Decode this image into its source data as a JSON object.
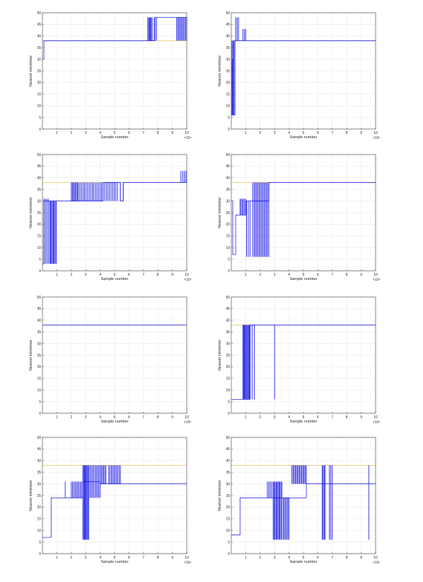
{
  "chart_data": [
    {
      "type": "line",
      "xlabel": "Sample number",
      "ylabel": "Nearest minimiser",
      "x_multiplier": "×10⁴",
      "xlim": [
        0,
        10
      ],
      "ylim": [
        0,
        50
      ],
      "xticks": [
        1,
        2,
        3,
        4,
        5,
        6,
        7,
        8,
        9,
        10
      ],
      "yticks": [
        0,
        5,
        10,
        15,
        20,
        25,
        30,
        35,
        40,
        45,
        50
      ],
      "grid": true,
      "reference_line": 38,
      "series": [
        {
          "start": 30,
          "segments": [
            {
              "x": 0.1,
              "y": 38
            },
            {
              "x": 7.3,
              "y": 38,
              "flicker": [
                7.3,
                7.6,
                38,
                48,
                6
              ]
            },
            {
              "x": 7.6,
              "y": 38
            },
            {
              "x": 7.8,
              "y": 48,
              "flicker": [
                7.75,
                7.9,
                38,
                48,
                2
              ]
            },
            {
              "x": 9.3,
              "y": 48,
              "flicker": [
                9.3,
                10.0,
                38,
                48,
                10
              ]
            }
          ]
        }
      ]
    },
    {
      "type": "line",
      "xlabel": "Sample number",
      "ylabel": "Nearest minimiser",
      "x_multiplier": "×10⁴",
      "xlim": [
        0,
        10
      ],
      "ylim": [
        0,
        50
      ],
      "xticks": [
        1,
        2,
        3,
        4,
        5,
        6,
        7,
        8,
        9,
        10
      ],
      "yticks": [
        0,
        5,
        10,
        15,
        20,
        25,
        30,
        35,
        40,
        45,
        50
      ],
      "grid": true,
      "reference_line": 38,
      "series": [
        {
          "start": 6,
          "segments": [
            {
              "x": 0.05,
              "y": 30
            },
            {
              "x": 0.1,
              "y": 6,
              "flicker": [
                0.05,
                0.25,
                6,
                38,
                4
              ]
            },
            {
              "x": 0.25,
              "y": 38,
              "flicker": [
                0.3,
                0.5,
                38,
                48,
                3
              ]
            },
            {
              "x": 0.5,
              "y": 38
            },
            {
              "x": 0.8,
              "y": 38,
              "flicker": [
                0.8,
                1.0,
                38,
                43,
                3
              ]
            },
            {
              "x": 1.0,
              "y": 38
            }
          ]
        }
      ]
    },
    {
      "type": "line",
      "xlabel": "Sample number",
      "ylabel": "Nearest minimiser",
      "x_multiplier": "×10⁴",
      "xlim": [
        0,
        10
      ],
      "ylim": [
        0,
        50
      ],
      "xticks": [
        1,
        2,
        3,
        4,
        5,
        6,
        7,
        8,
        9,
        10
      ],
      "yticks": [
        0,
        5,
        10,
        15,
        20,
        25,
        30,
        35,
        40,
        45,
        50
      ],
      "grid": true,
      "reference_line": 38,
      "series": [
        {
          "start": 3,
          "segments": [
            {
              "x": 0.1,
              "y": 30,
              "flicker": [
                0.1,
                0.4,
                3,
                31,
                4
              ]
            },
            {
              "x": 0.4,
              "y": 30,
              "flicker": [
                0.5,
                0.95,
                3,
                30,
                8
              ]
            },
            {
              "x": 0.95,
              "y": 30
            },
            {
              "x": 2.0,
              "y": 30,
              "flicker": [
                2.0,
                2.5,
                30,
                38,
                8
              ]
            },
            {
              "x": 2.5,
              "y": 30,
              "flicker": [
                2.6,
                4.2,
                30,
                38,
                16
              ]
            },
            {
              "x": 4.2,
              "y": 38,
              "flicker": [
                4.2,
                5.2,
                30,
                38,
                10
              ]
            },
            {
              "x": 5.2,
              "y": 38
            },
            {
              "x": 5.4,
              "y": 30,
              "flicker": [
                5.4,
                5.6,
                30,
                38,
                2
              ]
            },
            {
              "x": 5.6,
              "y": 38
            },
            {
              "x": 9.6,
              "y": 38,
              "flicker": [
                9.6,
                9.95,
                38,
                43,
                4
              ]
            },
            {
              "x": 9.95,
              "y": 38
            }
          ]
        }
      ]
    },
    {
      "type": "line",
      "xlabel": "Sample number",
      "ylabel": "Nearest minimiser",
      "x_multiplier": "×10⁴",
      "xlim": [
        0,
        10
      ],
      "ylim": [
        0,
        50
      ],
      "xticks": [
        1,
        2,
        3,
        4,
        5,
        6,
        7,
        8,
        9,
        10
      ],
      "yticks": [
        0,
        5,
        10,
        15,
        20,
        25,
        30,
        35,
        40,
        45,
        50
      ],
      "grid": true,
      "reference_line": 38,
      "series": [
        {
          "start": 30,
          "segments": [
            {
              "x": 0.1,
              "y": 7
            },
            {
              "x": 0.3,
              "y": 24
            },
            {
              "x": 0.6,
              "y": 24,
              "flicker": [
                0.6,
                1.0,
                24,
                31,
                6
              ]
            },
            {
              "x": 1.0,
              "y": 30,
              "flicker": [
                1.05,
                1.3,
                6,
                30,
                3
              ]
            },
            {
              "x": 1.3,
              "y": 30
            },
            {
              "x": 1.5,
              "y": 30,
              "flicker": [
                1.5,
                2.6,
                6,
                38,
                14
              ]
            },
            {
              "x": 2.6,
              "y": 38
            }
          ]
        }
      ]
    },
    {
      "type": "line",
      "xlabel": "Sample number",
      "ylabel": "Nearest minimiser",
      "x_multiplier": "×10⁴",
      "xlim": [
        0,
        10
      ],
      "ylim": [
        0,
        50
      ],
      "xticks": [
        1,
        2,
        3,
        4,
        5,
        6,
        7,
        8,
        9,
        10
      ],
      "yticks": [
        0,
        5,
        10,
        15,
        20,
        25,
        30,
        35,
        40,
        45,
        50
      ],
      "grid": true,
      "reference_line": 38,
      "series": [
        {
          "start": 38,
          "segments": [
            {
              "x": 0.05,
              "y": 38
            }
          ]
        }
      ]
    },
    {
      "type": "line",
      "xlabel": "Sample number",
      "ylabel": "Nearest minimiser",
      "x_multiplier": "×10⁴",
      "xlim": [
        0,
        10
      ],
      "ylim": [
        0,
        50
      ],
      "xticks": [
        1,
        2,
        3,
        4,
        5,
        6,
        7,
        8,
        9,
        10
      ],
      "yticks": [
        0,
        5,
        10,
        15,
        20,
        25,
        30,
        35,
        40,
        45,
        50
      ],
      "grid": true,
      "reference_line": 38,
      "series": [
        {
          "start": 6,
          "segments": [
            {
              "x": 0.8,
              "y": 6,
              "flicker": [
                0.8,
                1.3,
                6,
                38,
                10
              ]
            },
            {
              "x": 1.3,
              "y": 38,
              "flicker": [
                1.3,
                1.6,
                6,
                38,
                3
              ]
            },
            {
              "x": 1.6,
              "y": 38
            },
            {
              "x": 2.95,
              "y": 38,
              "flicker": [
                2.95,
                3.05,
                6,
                38,
                1
              ]
            },
            {
              "x": 3.05,
              "y": 38
            }
          ]
        }
      ]
    },
    {
      "type": "line",
      "xlabel": "Sample number",
      "ylabel": "Nearest minimiser",
      "x_multiplier": "×10⁴",
      "xlim": [
        0,
        10
      ],
      "ylim": [
        0,
        50
      ],
      "xticks": [
        1,
        2,
        3,
        4,
        5,
        6,
        7,
        8,
        9,
        10
      ],
      "yticks": [
        0,
        5,
        10,
        15,
        20,
        25,
        30,
        35,
        40,
        45,
        50
      ],
      "grid": true,
      "reference_line": 38,
      "series": [
        {
          "start": 7,
          "segments": [
            {
              "x": 0.6,
              "y": 24
            },
            {
              "x": 1.5,
              "y": 24,
              "flicker": [
                1.55,
                1.6,
                24,
                31,
                1
              ]
            },
            {
              "x": 2.0,
              "y": 24,
              "flicker": [
                2.0,
                2.8,
                24,
                31,
                10
              ]
            },
            {
              "x": 2.8,
              "y": 31,
              "flicker": [
                2.8,
                3.2,
                6,
                38,
                8
              ]
            },
            {
              "x": 3.2,
              "y": 31,
              "flicker": [
                3.2,
                4.0,
                24,
                38,
                10
              ]
            },
            {
              "x": 4.0,
              "y": 30,
              "flicker": [
                4.0,
                4.4,
                30,
                38,
                6
              ]
            },
            {
              "x": 4.4,
              "y": 30,
              "flicker": [
                4.6,
                5.4,
                30,
                38,
                10
              ]
            },
            {
              "x": 5.4,
              "y": 30
            }
          ]
        }
      ]
    },
    {
      "type": "line",
      "xlabel": "Sample number",
      "ylabel": "Nearest minimiser",
      "x_multiplier": "×10⁴",
      "xlim": [
        0,
        10
      ],
      "ylim": [
        0,
        50
      ],
      "xticks": [
        1,
        2,
        3,
        4,
        5,
        6,
        7,
        8,
        9,
        10
      ],
      "yticks": [
        0,
        5,
        10,
        15,
        20,
        25,
        30,
        35,
        40,
        45,
        50
      ],
      "grid": true,
      "reference_line": 38,
      "series": [
        {
          "start": 8,
          "segments": [
            {
              "x": 0.6,
              "y": 24
            },
            {
              "x": 2.5,
              "y": 24,
              "flicker": [
                2.5,
                2.8,
                24,
                31,
                4
              ]
            },
            {
              "x": 2.9,
              "y": 24,
              "flicker": [
                2.9,
                3.5,
                6,
                31,
                10
              ]
            },
            {
              "x": 3.5,
              "y": 24,
              "flicker": [
                3.6,
                4.0,
                6,
                24,
                6
              ]
            },
            {
              "x": 4.0,
              "y": 24,
              "flicker": [
                4.2,
                5.2,
                30,
                38,
                14
              ]
            },
            {
              "x": 5.2,
              "y": 30
            },
            {
              "x": 6.3,
              "y": 30,
              "flicker": [
                6.3,
                6.5,
                6,
                38,
                4
              ]
            },
            {
              "x": 6.8,
              "y": 30,
              "flicker": [
                6.8,
                7.0,
                6,
                38,
                3
              ]
            },
            {
              "x": 7.0,
              "y": 30
            },
            {
              "x": 9.5,
              "y": 30,
              "flicker": [
                9.5,
                9.55,
                6,
                38,
                1
              ]
            },
            {
              "x": 9.55,
              "y": 30
            }
          ]
        }
      ]
    }
  ]
}
